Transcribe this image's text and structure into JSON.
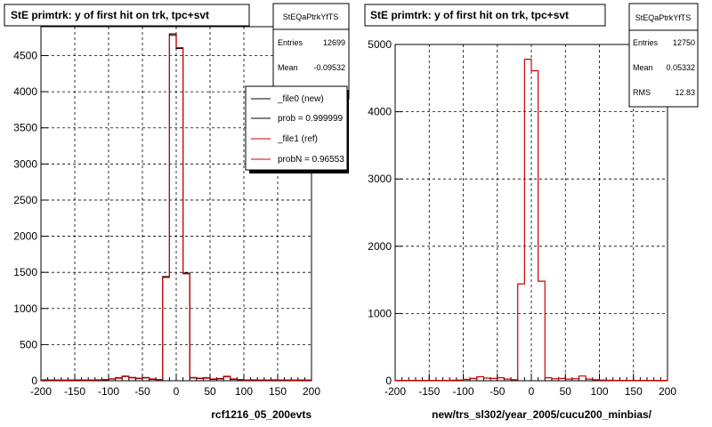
{
  "chart_data": [
    {
      "type": "bar",
      "title": "StE primtrk: y of first hit on trk, tpc+svt",
      "xlabel": "rcf1216_05_200evts",
      "ylabel": "",
      "xlim": [
        -200,
        200
      ],
      "ylim": [
        0,
        4900
      ],
      "x_ticks": [
        "-200",
        "-150",
        "-100",
        "-50",
        "0",
        "50",
        "100",
        "150",
        "200"
      ],
      "y_ticks": [
        "0",
        "500",
        "1000",
        "1500",
        "2000",
        "2500",
        "3000",
        "3500",
        "4000",
        "4500"
      ],
      "grid": true,
      "bin_width": 10,
      "bin_edges": [
        -200,
        -190,
        -180,
        -170,
        -160,
        -150,
        -140,
        -130,
        -120,
        -110,
        -100,
        -90,
        -80,
        -70,
        -60,
        -50,
        -40,
        -30,
        -20,
        -10,
        0,
        10,
        20,
        30,
        40,
        50,
        60,
        70,
        80,
        90,
        100,
        110,
        120,
        130,
        140,
        150,
        160,
        170,
        180,
        190,
        200
      ],
      "series": [
        {
          "name": "_file0 (new)",
          "color": "#000000",
          "values": [
            10,
            10,
            10,
            10,
            10,
            10,
            10,
            10,
            10,
            15,
            25,
            40,
            60,
            45,
            30,
            40,
            20,
            15,
            1440,
            4800,
            4600,
            1490,
            40,
            30,
            40,
            20,
            30,
            60,
            20,
            15,
            10,
            10,
            10,
            10,
            10,
            10,
            10,
            10,
            10,
            10
          ]
        },
        {
          "name": "_file1 (ref)",
          "color": "#cc0000",
          "values": [
            12,
            10,
            10,
            8,
            10,
            12,
            10,
            10,
            12,
            15,
            25,
            35,
            65,
            40,
            35,
            45,
            25,
            15,
            1430,
            4780,
            4610,
            1480,
            45,
            35,
            35,
            25,
            25,
            55,
            25,
            15,
            10,
            12,
            10,
            10,
            12,
            10,
            10,
            8,
            10,
            10
          ]
        }
      ],
      "stats": {
        "name": "StEQaPtrkYfTS",
        "rows": [
          [
            "Entries",
            "12699"
          ],
          [
            "Mean",
            "-0.09532"
          ]
        ]
      },
      "legend": [
        "_file0 (new)",
        "prob = 0.999999",
        "_file1 (ref)",
        "probN = 0.96553"
      ],
      "legend_position": "top-right"
    },
    {
      "type": "bar",
      "title": "StE primtrk: y of first hit on trk, tpc+svt",
      "xlabel": "new/trs_sl302/year_2005/cucu200_minbias/",
      "ylabel": "",
      "xlim": [
        -200,
        200
      ],
      "ylim": [
        0,
        5000
      ],
      "x_ticks": [
        "-200",
        "-150",
        "-100",
        "-50",
        "0",
        "50",
        "100",
        "150",
        "200"
      ],
      "y_ticks": [
        "0",
        "1000",
        "2000",
        "3000",
        "4000",
        "5000"
      ],
      "grid": true,
      "bin_width": 10,
      "bin_edges": [
        -200,
        -190,
        -180,
        -170,
        -160,
        -150,
        -140,
        -130,
        -120,
        -110,
        -100,
        -90,
        -80,
        -70,
        -60,
        -50,
        -40,
        -30,
        -20,
        -10,
        0,
        10,
        20,
        30,
        40,
        50,
        60,
        70,
        80,
        90,
        100,
        110,
        120,
        130,
        140,
        150,
        160,
        170,
        180,
        190,
        200
      ],
      "series": [
        {
          "name": "",
          "color": "#cc0000",
          "values": [
            5,
            5,
            5,
            5,
            5,
            5,
            5,
            5,
            8,
            10,
            20,
            35,
            60,
            40,
            35,
            45,
            25,
            15,
            1440,
            4780,
            4610,
            1480,
            45,
            30,
            35,
            25,
            30,
            70,
            25,
            15,
            10,
            8,
            5,
            5,
            5,
            5,
            5,
            5,
            5,
            5
          ]
        }
      ],
      "stats": {
        "name": "StEQaPtrkYfTS",
        "rows": [
          [
            "Entries",
            "12750"
          ],
          [
            "Mean",
            "0.05332"
          ],
          [
            "RMS",
            "12.83"
          ]
        ]
      }
    }
  ]
}
